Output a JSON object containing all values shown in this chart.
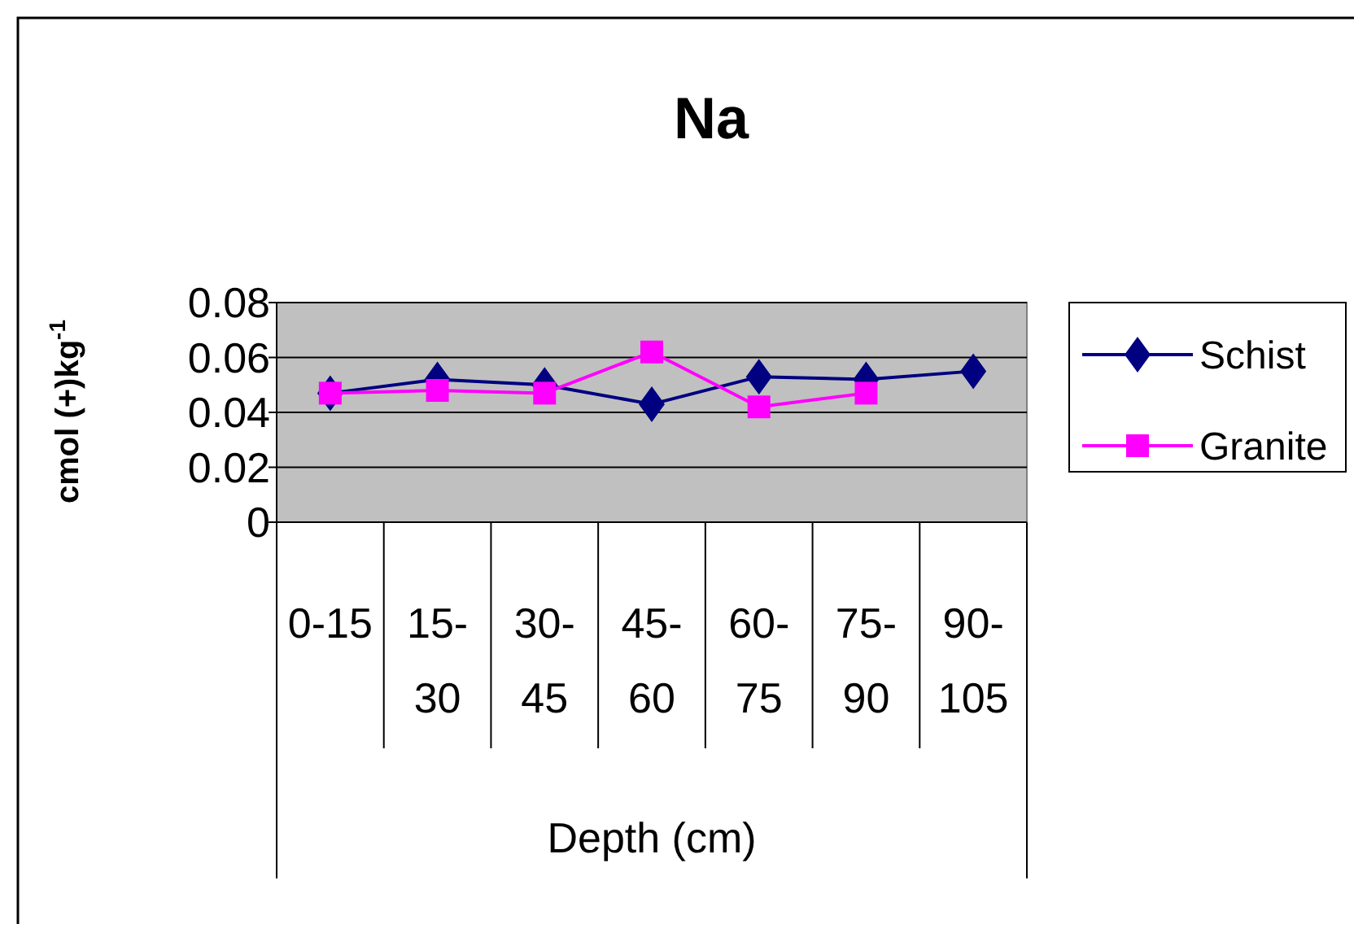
{
  "chart_data": {
    "type": "line",
    "title": "Na",
    "xlabel": "Depth (cm)",
    "ylabel": "cmol (+)kg$^{-1}$",
    "categories": [
      "0-15",
      "15-30",
      "30-45",
      "45-60",
      "60-75",
      "75-90",
      "90-105"
    ],
    "series": [
      {
        "name": "Schist",
        "color": "#000080",
        "marker": "diamond",
        "values": [
          0.047,
          0.052,
          0.05,
          0.043,
          0.053,
          0.052,
          0.055
        ]
      },
      {
        "name": "Granite",
        "color": "#ff00ff",
        "marker": "square",
        "values": [
          0.047,
          0.048,
          0.047,
          0.062,
          0.042,
          0.047,
          null
        ]
      }
    ],
    "ylim": [
      0,
      0.08
    ],
    "yticks": [
      0,
      0.02,
      0.04,
      0.06,
      0.08
    ],
    "grid": "y",
    "legend": "right"
  }
}
